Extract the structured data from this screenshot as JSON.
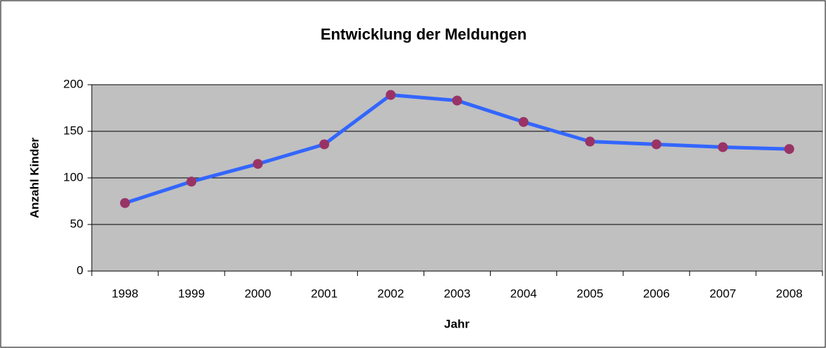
{
  "chart_data": {
    "type": "line",
    "title": "Entwicklung der Meldungen",
    "x_label": "Jahr",
    "y_label": "Anzahl Kinder",
    "categories": [
      "1998",
      "1999",
      "2000",
      "2001",
      "2002",
      "2003",
      "2004",
      "2005",
      "2006",
      "2007",
      "2008"
    ],
    "series": [
      {
        "name": "Anzahl Kinder",
        "color": "#3366ff",
        "marker_color": "#993366",
        "values": [
          73,
          96,
          115,
          136,
          189,
          183,
          160,
          139,
          136,
          133,
          131
        ]
      }
    ],
    "ylim": [
      0,
      200
    ],
    "yticks": [
      0,
      50,
      100,
      150,
      200
    ],
    "grid": true,
    "plot_background": "#c0c0c0"
  }
}
